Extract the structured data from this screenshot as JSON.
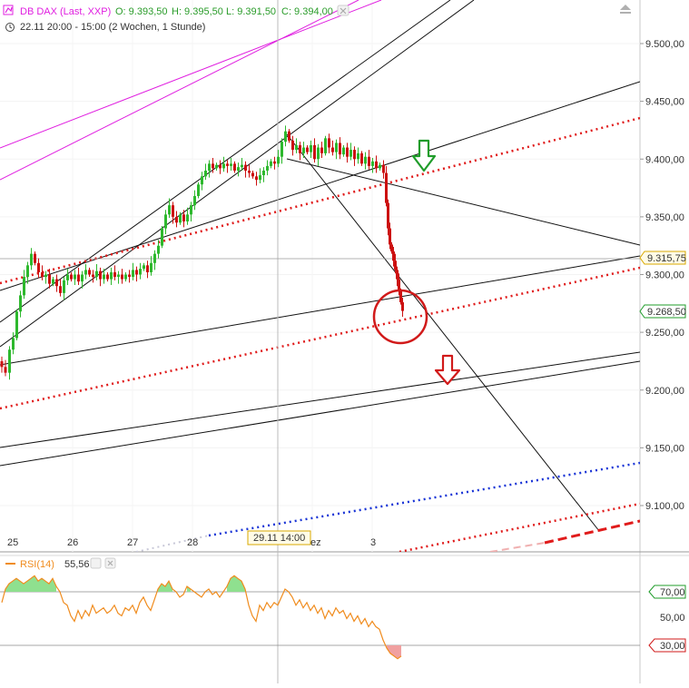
{
  "header": {
    "instrument": "DB DAX (Last, XXP)",
    "open": "O: 9.393,50",
    "high": "H: 9.395,50",
    "low": "L: 9.391,50",
    "close": "C: 9.394,00",
    "range": "22.11 20:00 - 15:00 (2 Wochen, 1 Stunde)"
  },
  "colors": {
    "bull_candle": "#2db82d",
    "bear_candle": "#cc1111",
    "trend_line": "#111111",
    "magenta_line": "#e020e0",
    "red_dotted": "#e01b1b",
    "blue_dotted": "#1a35d6",
    "rsi_line": "#f08c1e",
    "rsi_overbought_fill": "#8fe08f",
    "rsi_oversold_fill": "#f0a0a0",
    "green_arrow": "#1f9c2a",
    "red_arrow": "#d11a1a",
    "circle": "#d11a1a"
  },
  "chart_data": {
    "type": "candlestick",
    "price_axis": {
      "ticks": [
        "9.500,00",
        "9.450,00",
        "9.400,00",
        "9.350,00",
        "9.300,00",
        "9.250,00",
        "9.200,00",
        "9.150,00",
        "9.100,00"
      ],
      "range": [
        9060,
        9520
      ],
      "last_price_label": "9.268,50",
      "last_price": 9268.5,
      "crosshair_price_label": "9.315,75",
      "crosshair_price": 9315.75
    },
    "x_axis": {
      "ticks": [
        "25",
        "26",
        "27",
        "28",
        "ez",
        "3"
      ],
      "crosshair_label": "29.11 14:00"
    },
    "price_path": [
      [
        0,
        9225
      ],
      [
        3,
        9220
      ],
      [
        8,
        9215
      ],
      [
        12,
        9235
      ],
      [
        16,
        9245
      ],
      [
        20,
        9268
      ],
      [
        24,
        9282
      ],
      [
        28,
        9298
      ],
      [
        32,
        9308
      ],
      [
        36,
        9318
      ],
      [
        40,
        9310
      ],
      [
        44,
        9302
      ],
      [
        48,
        9298
      ],
      [
        52,
        9300
      ],
      [
        56,
        9292
      ],
      [
        60,
        9296
      ],
      [
        64,
        9290
      ],
      [
        68,
        9284
      ],
      [
        72,
        9295
      ],
      [
        76,
        9300
      ],
      [
        80,
        9296
      ],
      [
        84,
        9300
      ],
      [
        88,
        9294
      ],
      [
        92,
        9300
      ],
      [
        96,
        9304
      ],
      [
        100,
        9300
      ],
      [
        104,
        9298
      ],
      [
        108,
        9303
      ],
      [
        112,
        9296
      ],
      [
        116,
        9300
      ],
      [
        120,
        9296
      ],
      [
        124,
        9302
      ],
      [
        128,
        9298
      ],
      [
        132,
        9300
      ],
      [
        136,
        9296
      ],
      [
        140,
        9300
      ],
      [
        144,
        9298
      ],
      [
        148,
        9304
      ],
      [
        152,
        9300
      ],
      [
        156,
        9305
      ],
      [
        160,
        9308
      ],
      [
        164,
        9302
      ],
      [
        168,
        9310
      ],
      [
        172,
        9318
      ],
      [
        176,
        9325
      ],
      [
        180,
        9340
      ],
      [
        184,
        9352
      ],
      [
        188,
        9360
      ],
      [
        192,
        9350
      ],
      [
        196,
        9345
      ],
      [
        200,
        9352
      ],
      [
        204,
        9346
      ],
      [
        208,
        9352
      ],
      [
        212,
        9360
      ],
      [
        216,
        9368
      ],
      [
        220,
        9378
      ],
      [
        224,
        9385
      ],
      [
        228,
        9390
      ],
      [
        232,
        9396
      ],
      [
        236,
        9392
      ],
      [
        240,
        9395
      ],
      [
        244,
        9392
      ],
      [
        248,
        9396
      ],
      [
        252,
        9394
      ],
      [
        256,
        9396
      ],
      [
        260,
        9390
      ],
      [
        264,
        9393
      ],
      [
        268,
        9395
      ],
      [
        272,
        9390
      ],
      [
        276,
        9388
      ],
      [
        280,
        9385
      ],
      [
        284,
        9382
      ],
      [
        288,
        9386
      ],
      [
        292,
        9390
      ],
      [
        296,
        9394
      ],
      [
        300,
        9398
      ],
      [
        304,
        9396
      ],
      [
        308,
        9402
      ],
      [
        312,
        9415
      ],
      [
        316,
        9424
      ],
      [
        320,
        9416
      ],
      [
        324,
        9408
      ],
      [
        328,
        9412
      ],
      [
        332,
        9405
      ],
      [
        336,
        9410
      ],
      [
        340,
        9406
      ],
      [
        344,
        9412
      ],
      [
        348,
        9400
      ],
      [
        352,
        9410
      ],
      [
        356,
        9405
      ],
      [
        360,
        9418
      ],
      [
        364,
        9410
      ],
      [
        368,
        9406
      ],
      [
        372,
        9414
      ],
      [
        376,
        9404
      ],
      [
        380,
        9410
      ],
      [
        384,
        9402
      ],
      [
        388,
        9408
      ],
      [
        392,
        9400
      ],
      [
        396,
        9405
      ],
      [
        400,
        9396
      ],
      [
        404,
        9402
      ],
      [
        408,
        9394
      ],
      [
        412,
        9398
      ],
      [
        416,
        9392
      ],
      [
        420,
        9395
      ],
      [
        424,
        9388
      ],
      [
        426,
        9362
      ],
      [
        428,
        9340
      ],
      [
        430,
        9326
      ],
      [
        432,
        9320
      ],
      [
        434,
        9312
      ],
      [
        436,
        9304
      ],
      [
        438,
        9296
      ],
      [
        440,
        9286
      ],
      [
        442,
        9276
      ],
      [
        444,
        9268.5
      ]
    ],
    "rsi": {
      "label": "RSI(14)",
      "value_label": "55,56",
      "ticks": [
        "70,00",
        "50,00",
        "30,00"
      ],
      "overbought": 70,
      "oversold": 30,
      "values": [
        [
          2,
          62
        ],
        [
          6,
          72
        ],
        [
          10,
          76
        ],
        [
          14,
          78
        ],
        [
          18,
          80
        ],
        [
          22,
          78
        ],
        [
          26,
          76
        ],
        [
          30,
          78
        ],
        [
          34,
          80
        ],
        [
          38,
          82
        ],
        [
          42,
          78
        ],
        [
          46,
          80
        ],
        [
          50,
          78
        ],
        [
          54,
          76
        ],
        [
          58,
          80
        ],
        [
          62,
          74
        ],
        [
          66,
          70
        ],
        [
          70,
          62
        ],
        [
          74,
          60
        ],
        [
          78,
          52
        ],
        [
          82,
          48
        ],
        [
          86,
          56
        ],
        [
          90,
          50
        ],
        [
          94,
          56
        ],
        [
          98,
          52
        ],
        [
          102,
          60
        ],
        [
          106,
          54
        ],
        [
          110,
          56
        ],
        [
          114,
          58
        ],
        [
          118,
          54
        ],
        [
          122,
          56
        ],
        [
          126,
          60
        ],
        [
          130,
          54
        ],
        [
          134,
          52
        ],
        [
          138,
          58
        ],
        [
          142,
          56
        ],
        [
          146,
          60
        ],
        [
          150,
          54
        ],
        [
          154,
          62
        ],
        [
          158,
          66
        ],
        [
          162,
          60
        ],
        [
          166,
          56
        ],
        [
          170,
          64
        ],
        [
          174,
          72
        ],
        [
          178,
          76
        ],
        [
          182,
          74
        ],
        [
          186,
          78
        ],
        [
          190,
          72
        ],
        [
          194,
          70
        ],
        [
          198,
          66
        ],
        [
          202,
          68
        ],
        [
          206,
          74
        ],
        [
          210,
          72
        ],
        [
          214,
          70
        ],
        [
          218,
          68
        ],
        [
          222,
          66
        ],
        [
          226,
          70
        ],
        [
          230,
          72
        ],
        [
          234,
          68
        ],
        [
          238,
          70
        ],
        [
          242,
          66
        ],
        [
          246,
          70
        ],
        [
          250,
          74
        ],
        [
          254,
          80
        ],
        [
          258,
          82
        ],
        [
          262,
          80
        ],
        [
          266,
          78
        ],
        [
          270,
          72
        ],
        [
          274,
          60
        ],
        [
          278,
          52
        ],
        [
          282,
          48
        ],
        [
          286,
          60
        ],
        [
          290,
          56
        ],
        [
          294,
          62
        ],
        [
          298,
          58
        ],
        [
          302,
          62
        ],
        [
          306,
          60
        ],
        [
          310,
          66
        ],
        [
          314,
          72
        ],
        [
          318,
          70
        ],
        [
          322,
          66
        ],
        [
          326,
          60
        ],
        [
          330,
          64
        ],
        [
          334,
          58
        ],
        [
          338,
          62
        ],
        [
          342,
          56
        ],
        [
          346,
          60
        ],
        [
          350,
          54
        ],
        [
          354,
          58
        ],
        [
          358,
          50
        ],
        [
          362,
          56
        ],
        [
          366,
          52
        ],
        [
          370,
          58
        ],
        [
          374,
          54
        ],
        [
          378,
          56
        ],
        [
          382,
          50
        ],
        [
          386,
          54
        ],
        [
          390,
          48
        ],
        [
          394,
          52
        ],
        [
          398,
          46
        ],
        [
          402,
          50
        ],
        [
          406,
          44
        ],
        [
          410,
          48
        ],
        [
          414,
          44
        ],
        [
          418,
          42
        ],
        [
          422,
          34
        ],
        [
          426,
          28
        ],
        [
          430,
          24
        ],
        [
          434,
          22
        ],
        [
          438,
          20
        ],
        [
          442,
          22
        ]
      ]
    }
  }
}
